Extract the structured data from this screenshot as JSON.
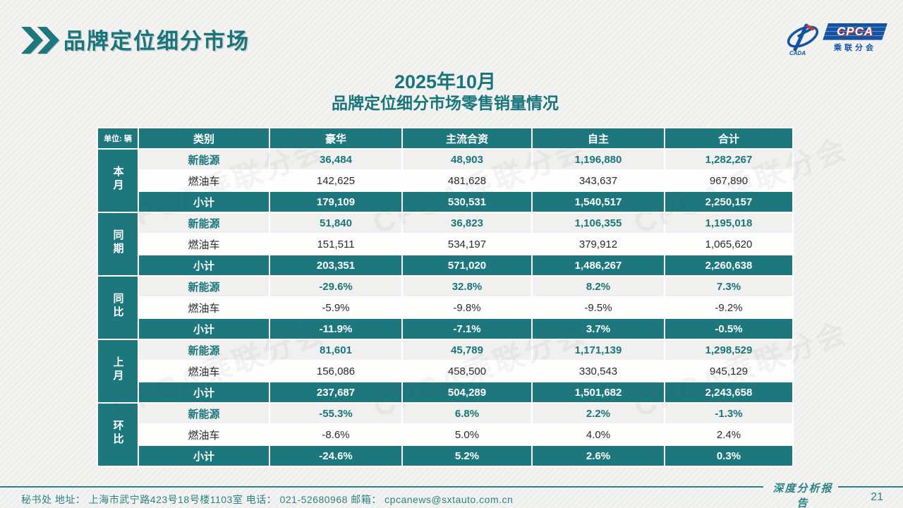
{
  "header": {
    "title": "品牌定位细分市场"
  },
  "logo": {
    "cpca": "CPCA",
    "sub": "乘联分会",
    "cada": "CADA"
  },
  "subtitle": {
    "line1": "2025年10月",
    "line2": "品牌定位细分市场零售销量情况"
  },
  "table": {
    "unit_label": "单位: 辆",
    "columns": [
      "类别",
      "豪华",
      "主流合资",
      "自主",
      "合计"
    ],
    "row_labels": {
      "ne": "新能源",
      "fuel": "燃油车",
      "subtotal": "小计"
    },
    "groups": [
      {
        "name": "本月",
        "ne": [
          "36,484",
          "48,903",
          "1,196,880",
          "1,282,267"
        ],
        "fuel": [
          "142,625",
          "481,628",
          "343,637",
          "967,890"
        ],
        "subtotal": [
          "179,109",
          "530,531",
          "1,540,517",
          "2,250,157"
        ]
      },
      {
        "name": "同期",
        "ne": [
          "51,840",
          "36,823",
          "1,106,355",
          "1,195,018"
        ],
        "fuel": [
          "151,511",
          "534,197",
          "379,912",
          "1,065,620"
        ],
        "subtotal": [
          "203,351",
          "571,020",
          "1,486,267",
          "2,260,638"
        ]
      },
      {
        "name": "同比",
        "ne": [
          "-29.6%",
          "32.8%",
          "8.2%",
          "7.3%"
        ],
        "fuel": [
          "-5.9%",
          "-9.8%",
          "-9.5%",
          "-9.2%"
        ],
        "subtotal": [
          "-11.9%",
          "-7.1%",
          "3.7%",
          "-0.5%"
        ]
      },
      {
        "name": "上月",
        "ne": [
          "81,601",
          "45,789",
          "1,171,139",
          "1,298,529"
        ],
        "fuel": [
          "156,086",
          "458,500",
          "330,543",
          "945,129"
        ],
        "subtotal": [
          "237,687",
          "504,289",
          "1,501,682",
          "2,243,658"
        ]
      },
      {
        "name": "环比",
        "ne": [
          "-55.3%",
          "6.8%",
          "2.2%",
          "-1.3%"
        ],
        "fuel": [
          "-8.6%",
          "5.0%",
          "4.0%",
          "2.4%"
        ],
        "subtotal": [
          "-24.6%",
          "5.2%",
          "2.6%",
          "0.3%"
        ]
      }
    ]
  },
  "watermark": {
    "text": "CPCA乘联分会"
  },
  "footer": {
    "left": "秘书处   地址： 上海市武宁路423号18号楼1103室  电话： 021-52680968   邮箱： cpcanews@sxtauto.com.cn",
    "report_label": "深度分析报告",
    "page_number": "21"
  },
  "colors": {
    "accent_teal": "#1E777C",
    "footer_teal": "#2B8186",
    "logo_blue": "#1453A4",
    "logo_red": "#C8382E"
  }
}
